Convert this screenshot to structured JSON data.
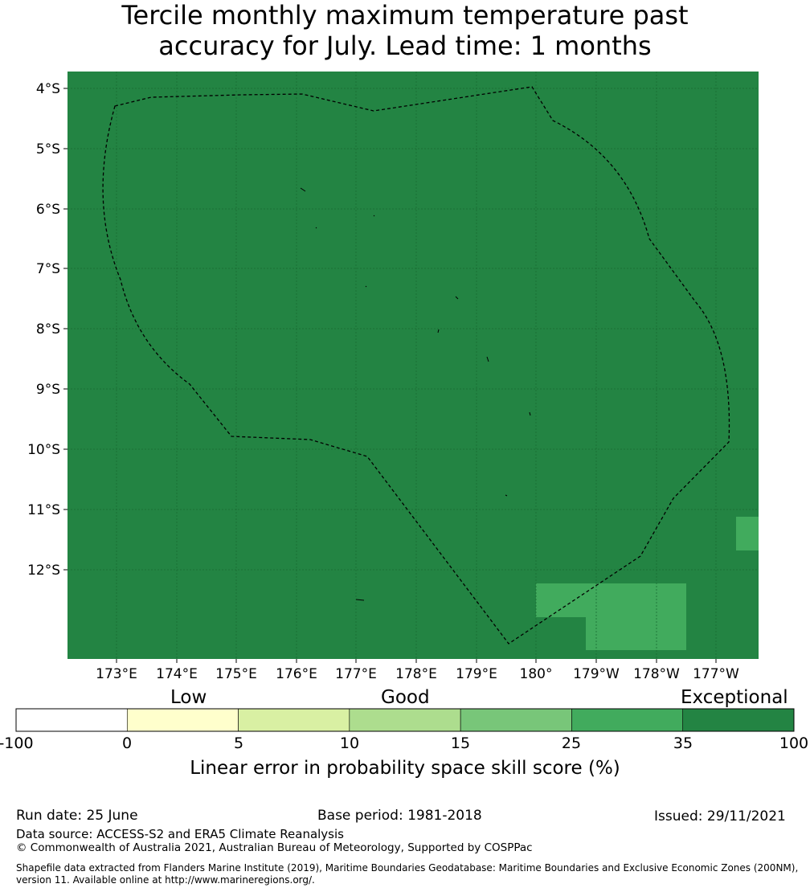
{
  "title_line1": "Tercile monthly maximum temperature past",
  "title_line2": "accuracy for July. Lead time: 1 months",
  "map": {
    "lon_labels": [
      "173°E",
      "174°E",
      "175°E",
      "176°E",
      "177°E",
      "178°E",
      "179°E",
      "180°",
      "179°W",
      "178°W",
      "177°W"
    ],
    "lat_labels": [
      "4°S",
      "5°S",
      "6°S",
      "7°S",
      "8°S",
      "9°S",
      "10°S",
      "11°S",
      "12°S"
    ],
    "background_color": "#238443",
    "patch_color": "#41ab5d",
    "boundary_style": "dashed"
  },
  "colorbar": {
    "categories": [
      "Low",
      "Good",
      "Exceptional"
    ],
    "ticks": [
      "-100",
      "0",
      "5",
      "10",
      "15",
      "25",
      "35",
      "100"
    ],
    "colors": [
      "#ffffff",
      "#ffffcc",
      "#d9f0a3",
      "#addd8e",
      "#78c679",
      "#41ab5d",
      "#238443"
    ],
    "label": "Linear error in probability space skill score (%)"
  },
  "footer": {
    "run_date": "Run date: 25 June",
    "base_period": "Base period: 1981-2018",
    "issued": "Issued: 29/11/2021",
    "data_source": "Data source: ACCESS-S2 and ERA5 Climate Reanalysis",
    "copyright": "© Commonwealth of Australia 2021, Australian Bureau of Meteorology, Supported by COSPPac",
    "shapefile_line1": "Shapefile data extracted from Flanders Marine Institute (2019), Maritime Boundaries Geodatabase: Maritime Boundaries and Exclusive Economic Zones (200NM),",
    "shapefile_line2": "version 11. Available online at http://www.marineregions.org/."
  }
}
